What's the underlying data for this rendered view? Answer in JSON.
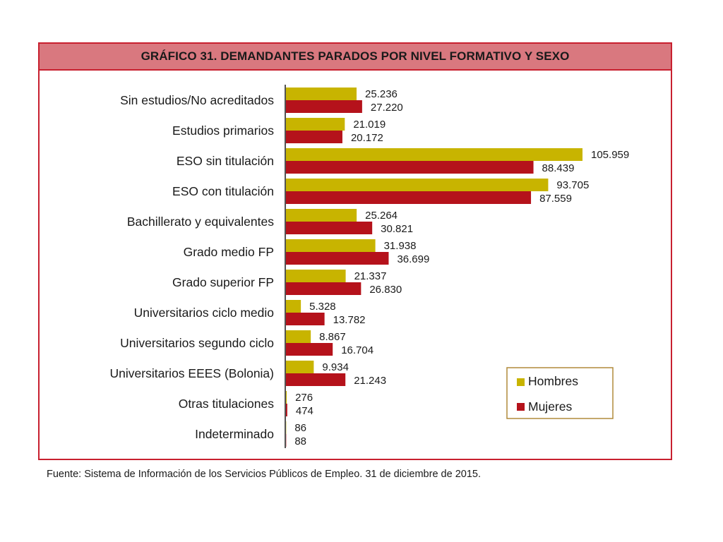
{
  "figure": {
    "title": "GRÁFICO 31. DEMANDANTES PARADOS POR NIVEL FORMATIVO Y SEXO",
    "source": "Fuente: Sistema de Información de los Servicios Públicos de Empleo. 31 de diciembre de 2015."
  },
  "colors": {
    "hombres": "#c8b400",
    "mujeres": "#b5121b",
    "frame": "#c8202f",
    "title_bg": "#d9787f",
    "legend_border": "#b08a3a"
  },
  "chart_data": {
    "type": "bar",
    "orientation": "horizontal",
    "title": "GRÁFICO 31. DEMANDANTES PARADOS POR NIVEL FORMATIVO Y SEXO",
    "xlabel": "",
    "ylabel": "",
    "xlim": [
      0,
      110000
    ],
    "grid": false,
    "legend_position": "bottom-right",
    "categories": [
      "Sin estudios/No acreditados",
      "Estudios primarios",
      "ESO sin titulación",
      "ESO con titulación",
      "Bachillerato y equivalentes",
      "Grado medio FP",
      "Grado superior FP",
      "Universitarios ciclo medio",
      "Universitarios segundo ciclo",
      "Universitarios EEES (Bolonia)",
      "Otras titulaciones",
      "Indeterminado"
    ],
    "series": [
      {
        "name": "Hombres",
        "color": "#c8b400",
        "values": [
          25236,
          21019,
          105959,
          93705,
          25264,
          31938,
          21337,
          5328,
          8867,
          9934,
          276,
          86
        ],
        "labels": [
          "25.236",
          "21.019",
          "105.959",
          "93.705",
          "25.264",
          "31.938",
          "21.337",
          "5.328",
          "8.867",
          "9.934",
          "276",
          "86"
        ]
      },
      {
        "name": "Mujeres",
        "color": "#b5121b",
        "values": [
          27220,
          20172,
          88439,
          87559,
          30821,
          36699,
          26830,
          13782,
          16704,
          21243,
          474,
          88
        ],
        "labels": [
          "27.220",
          "20.172",
          "88.439",
          "87.559",
          "30.821",
          "36.699",
          "26.830",
          "13.782",
          "16.704",
          "21.243",
          "474",
          "88"
        ]
      }
    ]
  }
}
